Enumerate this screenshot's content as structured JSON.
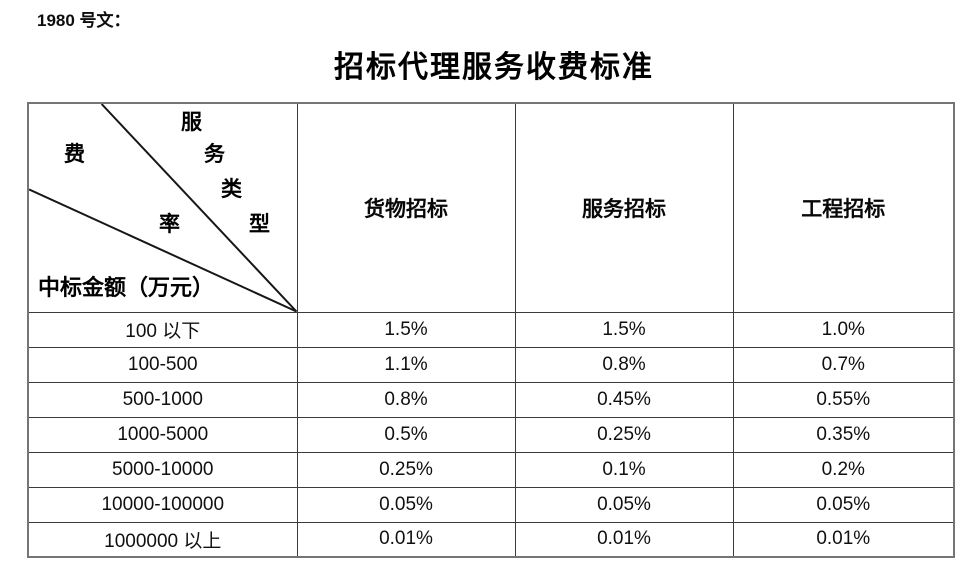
{
  "doc": {
    "ref_label": "1980 号文：",
    "title": "招标代理服务收费标准"
  },
  "table": {
    "corner": {
      "diag_chars": [
        "服",
        "务",
        "类",
        "型"
      ],
      "fee_chars": [
        "费",
        "率"
      ],
      "bottom_label": "中标金额（万元）"
    },
    "columns": [
      "货物招标",
      "服务招标",
      "工程招标"
    ],
    "rows": [
      {
        "label": "100 以下",
        "values": [
          "1.5%",
          "1.5%",
          "1.0%"
        ]
      },
      {
        "label": "100-500",
        "values": [
          "1.1%",
          "0.8%",
          "0.7%"
        ]
      },
      {
        "label": "500-1000",
        "values": [
          "0.8%",
          "0.45%",
          "0.55%"
        ]
      },
      {
        "label": "1000-5000",
        "values": [
          "0.5%",
          "0.25%",
          "0.35%"
        ]
      },
      {
        "label": "5000-10000",
        "values": [
          "0.25%",
          "0.1%",
          "0.2%"
        ]
      },
      {
        "label": "10000-100000",
        "values": [
          "0.05%",
          "0.05%",
          "0.05%"
        ]
      },
      {
        "label": "1000000 以上",
        "values": [
          "0.01%",
          "0.01%",
          "0.01%"
        ]
      }
    ]
  }
}
